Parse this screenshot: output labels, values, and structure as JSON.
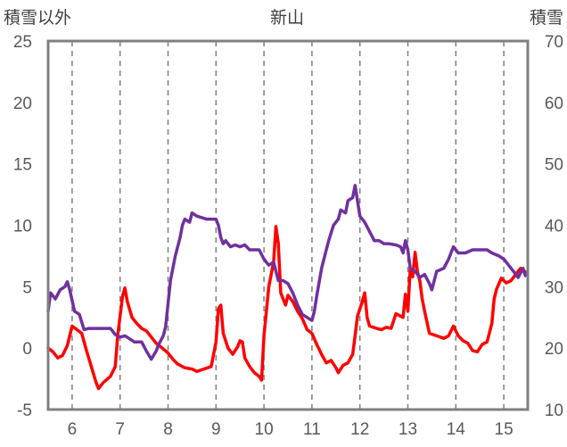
{
  "chart_data": {
    "type": "line",
    "title": "新山",
    "y_left_label": "積雪以外",
    "y_right_label": "積雪",
    "y_left_range": [
      -5,
      25
    ],
    "y_left_ticks": [
      -5,
      0,
      5,
      10,
      15,
      20,
      25
    ],
    "y_right_range": [
      10,
      70
    ],
    "y_right_ticks": [
      10,
      20,
      30,
      40,
      50,
      60,
      70
    ],
    "x_range": [
      5.5,
      15.5
    ],
    "x_ticks": [
      6,
      7,
      8,
      9,
      10,
      11,
      12,
      13,
      14,
      15
    ],
    "grid": "dashed-vertical",
    "series": [
      {
        "name": "",
        "axis": "left",
        "color": "#ff0000",
        "points": [
          [
            5.5,
            0.0
          ],
          [
            5.6,
            -0.3
          ],
          [
            5.7,
            -0.8
          ],
          [
            5.8,
            -0.6
          ],
          [
            5.9,
            0.2
          ],
          [
            6.0,
            1.8
          ],
          [
            6.1,
            1.5
          ],
          [
            6.2,
            1.2
          ],
          [
            6.3,
            -0.2
          ],
          [
            6.4,
            -1.5
          ],
          [
            6.5,
            -2.8
          ],
          [
            6.55,
            -3.3
          ],
          [
            6.65,
            -2.8
          ],
          [
            6.8,
            -2.3
          ],
          [
            6.9,
            -1.5
          ],
          [
            6.95,
            1.0
          ],
          [
            7.05,
            4.2
          ],
          [
            7.1,
            4.9
          ],
          [
            7.15,
            3.8
          ],
          [
            7.25,
            2.5
          ],
          [
            7.35,
            2.0
          ],
          [
            7.45,
            1.6
          ],
          [
            7.55,
            1.4
          ],
          [
            7.65,
            0.9
          ],
          [
            7.75,
            0.4
          ],
          [
            7.85,
            0.1
          ],
          [
            8.0,
            -0.4
          ],
          [
            8.1,
            -0.9
          ],
          [
            8.2,
            -1.3
          ],
          [
            8.35,
            -1.6
          ],
          [
            8.5,
            -1.7
          ],
          [
            8.6,
            -1.9
          ],
          [
            8.75,
            -1.7
          ],
          [
            8.9,
            -1.5
          ],
          [
            9.0,
            0.5
          ],
          [
            9.05,
            3.2
          ],
          [
            9.1,
            3.5
          ],
          [
            9.15,
            1.2
          ],
          [
            9.25,
            0.0
          ],
          [
            9.35,
            -0.5
          ],
          [
            9.45,
            0.1
          ],
          [
            9.5,
            0.6
          ],
          [
            9.55,
            0.5
          ],
          [
            9.6,
            -0.8
          ],
          [
            9.7,
            -1.5
          ],
          [
            9.8,
            -2.0
          ],
          [
            9.9,
            -2.3
          ],
          [
            9.95,
            -2.6
          ],
          [
            10.0,
            1.0
          ],
          [
            10.1,
            5.0
          ],
          [
            10.2,
            7.0
          ],
          [
            10.25,
            9.9
          ],
          [
            10.3,
            8.5
          ],
          [
            10.35,
            4.5
          ],
          [
            10.45,
            3.5
          ],
          [
            10.5,
            4.3
          ],
          [
            10.6,
            3.8
          ],
          [
            10.7,
            3.0
          ],
          [
            10.8,
            2.4
          ],
          [
            10.9,
            1.5
          ],
          [
            11.0,
            1.2
          ],
          [
            11.1,
            0.3
          ],
          [
            11.2,
            -0.5
          ],
          [
            11.3,
            -1.2
          ],
          [
            11.4,
            -1.0
          ],
          [
            11.5,
            -1.6
          ],
          [
            11.55,
            -2.0
          ],
          [
            11.65,
            -1.4
          ],
          [
            11.75,
            -1.2
          ],
          [
            11.85,
            -0.5
          ],
          [
            11.9,
            1.0
          ],
          [
            11.95,
            2.6
          ],
          [
            12.05,
            3.8
          ],
          [
            12.1,
            4.5
          ],
          [
            12.15,
            2.5
          ],
          [
            12.2,
            1.8
          ],
          [
            12.35,
            1.6
          ],
          [
            12.45,
            1.5
          ],
          [
            12.55,
            1.7
          ],
          [
            12.65,
            1.6
          ],
          [
            12.75,
            2.8
          ],
          [
            12.9,
            2.5
          ],
          [
            12.95,
            4.4
          ],
          [
            13.0,
            3.0
          ],
          [
            13.05,
            6.5
          ],
          [
            13.1,
            5.8
          ],
          [
            13.15,
            7.8
          ],
          [
            13.2,
            6.2
          ],
          [
            13.25,
            5.5
          ],
          [
            13.3,
            4.0
          ],
          [
            13.35,
            3.0
          ],
          [
            13.45,
            1.2
          ],
          [
            13.6,
            1.0
          ],
          [
            13.75,
            0.8
          ],
          [
            13.85,
            1.0
          ],
          [
            13.95,
            1.8
          ],
          [
            14.05,
            1.0
          ],
          [
            14.15,
            0.6
          ],
          [
            14.25,
            0.4
          ],
          [
            14.35,
            -0.2
          ],
          [
            14.45,
            -0.3
          ],
          [
            14.55,
            0.3
          ],
          [
            14.65,
            0.5
          ],
          [
            14.75,
            2.0
          ],
          [
            14.8,
            4.0
          ],
          [
            14.85,
            4.8
          ],
          [
            14.95,
            5.7
          ],
          [
            15.05,
            5.3
          ],
          [
            15.15,
            5.5
          ],
          [
            15.25,
            6.0
          ],
          [
            15.35,
            6.5
          ],
          [
            15.45,
            6.2
          ]
        ]
      },
      {
        "name": "",
        "axis": "right",
        "color": "#7030a0",
        "points": [
          [
            5.5,
            26.0
          ],
          [
            5.55,
            29.0
          ],
          [
            5.65,
            28.0
          ],
          [
            5.75,
            29.5
          ],
          [
            5.85,
            30.0
          ],
          [
            5.9,
            30.8
          ],
          [
            5.95,
            29.5
          ],
          [
            6.05,
            26.0
          ],
          [
            6.15,
            25.5
          ],
          [
            6.25,
            23.0
          ],
          [
            6.35,
            23.2
          ],
          [
            6.5,
            23.2
          ],
          [
            6.8,
            23.2
          ],
          [
            6.9,
            22.2
          ],
          [
            7.0,
            21.8
          ],
          [
            7.1,
            22.0
          ],
          [
            7.2,
            21.5
          ],
          [
            7.3,
            21.0
          ],
          [
            7.45,
            21.0
          ],
          [
            7.55,
            19.5
          ],
          [
            7.65,
            18.2
          ],
          [
            7.75,
            19.5
          ],
          [
            7.8,
            20.5
          ],
          [
            7.9,
            22.0
          ],
          [
            7.95,
            23.5
          ],
          [
            8.05,
            31.0
          ],
          [
            8.15,
            35.0
          ],
          [
            8.25,
            38.0
          ],
          [
            8.3,
            40.0
          ],
          [
            8.35,
            41.0
          ],
          [
            8.45,
            40.5
          ],
          [
            8.5,
            42.0
          ],
          [
            8.6,
            41.5
          ],
          [
            8.8,
            41.0
          ],
          [
            9.0,
            41.0
          ],
          [
            9.05,
            40.0
          ],
          [
            9.1,
            38.0
          ],
          [
            9.15,
            37.0
          ],
          [
            9.2,
            37.5
          ],
          [
            9.3,
            36.5
          ],
          [
            9.4,
            36.8
          ],
          [
            9.5,
            36.5
          ],
          [
            9.6,
            36.8
          ],
          [
            9.7,
            36.0
          ],
          [
            9.8,
            36.0
          ],
          [
            9.9,
            36.0
          ],
          [
            10.0,
            34.5
          ],
          [
            10.05,
            34.0
          ],
          [
            10.1,
            33.5
          ],
          [
            10.2,
            34.0
          ],
          [
            10.3,
            31.0
          ],
          [
            10.4,
            31.0
          ],
          [
            10.5,
            30.5
          ],
          [
            10.6,
            29.0
          ],
          [
            10.7,
            27.0
          ],
          [
            10.8,
            25.5
          ],
          [
            10.9,
            25.0
          ],
          [
            11.0,
            24.5
          ],
          [
            11.05,
            26.0
          ],
          [
            11.1,
            28.5
          ],
          [
            11.2,
            33.0
          ],
          [
            11.3,
            36.0
          ],
          [
            11.35,
            37.5
          ],
          [
            11.45,
            40.0
          ],
          [
            11.55,
            41.0
          ],
          [
            11.6,
            42.5
          ],
          [
            11.7,
            42.0
          ],
          [
            11.75,
            44.0
          ],
          [
            11.85,
            44.5
          ],
          [
            11.9,
            46.5
          ],
          [
            11.95,
            44.0
          ],
          [
            12.0,
            41.5
          ],
          [
            12.1,
            40.5
          ],
          [
            12.2,
            39.0
          ],
          [
            12.3,
            37.5
          ],
          [
            12.4,
            37.5
          ],
          [
            12.5,
            37.0
          ],
          [
            12.6,
            37.0
          ],
          [
            12.75,
            36.8
          ],
          [
            12.85,
            36.5
          ],
          [
            12.9,
            35.5
          ],
          [
            12.95,
            37.5
          ],
          [
            13.0,
            36.0
          ],
          [
            13.05,
            33.0
          ],
          [
            13.15,
            32.5
          ],
          [
            13.25,
            31.5
          ],
          [
            13.35,
            32.0
          ],
          [
            13.45,
            30.5
          ],
          [
            13.5,
            29.5
          ],
          [
            13.6,
            32.5
          ],
          [
            13.75,
            33.0
          ],
          [
            13.85,
            34.5
          ],
          [
            13.95,
            36.5
          ],
          [
            14.05,
            35.5
          ],
          [
            14.2,
            35.5
          ],
          [
            14.35,
            36.0
          ],
          [
            14.5,
            36.0
          ],
          [
            14.65,
            36.0
          ],
          [
            14.75,
            35.5
          ],
          [
            14.9,
            35.0
          ],
          [
            15.0,
            34.5
          ],
          [
            15.1,
            33.5
          ],
          [
            15.2,
            32.5
          ],
          [
            15.3,
            31.5
          ],
          [
            15.4,
            33.0
          ],
          [
            15.45,
            31.8
          ]
        ]
      }
    ]
  }
}
